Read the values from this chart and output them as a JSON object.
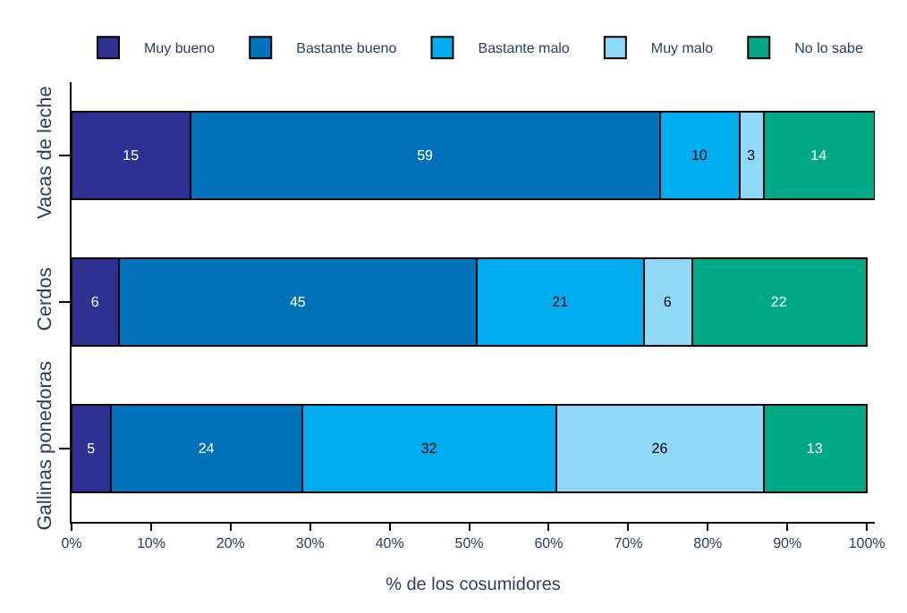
{
  "chart_data": {
    "type": "bar",
    "orientation": "horizontal",
    "stacked": true,
    "data_labels": true,
    "legend": "top",
    "xlabel": "% de los cosumidores",
    "categories": [
      "Vacas de leche",
      "Cerdos",
      "Gallinas ponedoras"
    ],
    "series": [
      {
        "name": "Muy bueno",
        "color": "#2e3192",
        "values": [
          15,
          6,
          5
        ]
      },
      {
        "name": "Bastante bueno",
        "color": "#0072bc",
        "values": [
          59,
          45,
          24
        ]
      },
      {
        "name": "Bastante malo",
        "color": "#00aeef",
        "values": [
          10,
          21,
          32
        ]
      },
      {
        "name": "Muy malo",
        "color": "#8fd8f8",
        "values": [
          3,
          6,
          26
        ]
      },
      {
        "name": "No lo sabe",
        "color": "#00a886",
        "values": [
          14,
          22,
          13
        ]
      }
    ],
    "xlim": [
      0,
      101
    ],
    "xticks": [
      {
        "value": 0,
        "label": "0%"
      },
      {
        "value": 10,
        "label": "10%"
      },
      {
        "value": 20,
        "label": "20%"
      },
      {
        "value": 30,
        "label": "30%"
      },
      {
        "value": 40,
        "label": "40%"
      },
      {
        "value": 50,
        "label": "50%"
      },
      {
        "value": 60,
        "label": "60%"
      },
      {
        "value": 70,
        "label": "70%"
      },
      {
        "value": 80,
        "label": "80%"
      },
      {
        "value": 90,
        "label": "90%"
      },
      {
        "value": 100,
        "label": "100%"
      }
    ]
  }
}
